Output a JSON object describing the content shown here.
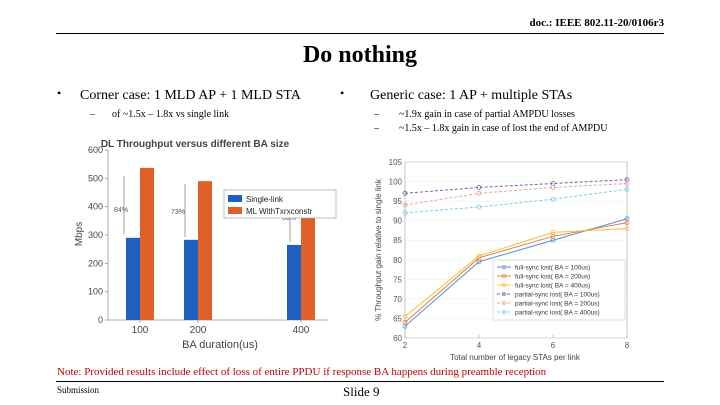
{
  "doc_id": "doc.: IEEE 802.11-20/0106r3",
  "title": "Do nothing",
  "left": {
    "bullet": "Corner case: 1 MLD AP + 1 MLD STA",
    "sub": "of ~1.5x – 1.8x vs single link"
  },
  "right": {
    "bullet": "Generic case: 1 AP + multiple STAs",
    "subs": [
      "~1.9x gain in case of partial AMPDU losses",
      "~1.5x – 1.8x gain in case of lost the end of AMPDU"
    ]
  },
  "bar_chart": {
    "title": "DL Throughput versus different BA size",
    "xlabel": "BA duration(us)",
    "ylabel": "Mbps",
    "y_ticks": [
      "0",
      "100",
      "200",
      "300",
      "400",
      "500",
      "600"
    ],
    "legend": [
      "Single-link",
      "ML WithTxrxconstr"
    ],
    "annotations": [
      "84%",
      "73%",
      "56%"
    ]
  },
  "line_chart": {
    "xlabel": "Total number of legacy STAs per link",
    "ylabel": "% Throughput gain relative to single link",
    "y_ticks": [
      "60",
      "65",
      "70",
      "75",
      "80",
      "85",
      "90",
      "95",
      "100",
      "105"
    ],
    "x_ticks": [
      "2",
      "4",
      "6",
      "8"
    ],
    "legend": [
      "full-sync lost( BA = 100us)",
      "full-sync lost( BA = 200us)",
      "full-sync lost( BA = 400us)",
      "partial-sync lost( BA = 100us)",
      "partial-sync lost( BA = 200us)",
      "partial-sync lost( BA = 400us)"
    ]
  },
  "chart_data": [
    {
      "type": "bar",
      "title": "DL Throughput versus different BA size",
      "xlabel": "BA duration(us)",
      "ylabel": "Mbps",
      "categories": [
        "100",
        "200",
        "400"
      ],
      "ylim": [
        0,
        600
      ],
      "series": [
        {
          "name": "Single-link",
          "values": [
            290,
            283,
            265
          ],
          "color": "#1f5fbf"
        },
        {
          "name": "ML WithTxrxconstr",
          "values": [
            537,
            490,
            413
          ],
          "color": "#e0602a"
        }
      ],
      "legend_position": "top-right"
    },
    {
      "type": "line",
      "xlabel": "Total number of legacy STAs per link",
      "ylabel": "% Throughput gain relative to single link",
      "x": [
        2,
        4,
        6,
        8
      ],
      "ylim": [
        60,
        105
      ],
      "series": [
        {
          "name": "full-sync lost( BA = 100us)",
          "values": [
            63,
            79.5,
            85,
            90.5
          ],
          "color": "#5b8fd6",
          "dash": false
        },
        {
          "name": "full-sync lost( BA = 200us)",
          "values": [
            64,
            80.5,
            86,
            89.5
          ],
          "color": "#e08040",
          "dash": false
        },
        {
          "name": "full-sync lost( BA = 400us)",
          "values": [
            65.5,
            81,
            87,
            88
          ],
          "color": "#f0c040",
          "dash": false
        },
        {
          "name": "partial-sync lost( BA = 100us)",
          "values": [
            97,
            98.5,
            99.5,
            100.5
          ],
          "color": "#6a6aa8",
          "dash": true
        },
        {
          "name": "partial-sync lost( BA = 200us)",
          "values": [
            94,
            97,
            98.5,
            99.5
          ],
          "color": "#e8a0a0",
          "dash": true
        },
        {
          "name": "partial-sync lost( BA = 400us)",
          "values": [
            92,
            93.5,
            95.5,
            98
          ],
          "color": "#80c8e8",
          "dash": true
        }
      ],
      "legend_position": "bottom-right"
    }
  ],
  "note": "Note: Provided results include effect of loss of entire PPDU if response BA happens during preamble reception",
  "submission": "Submission",
  "slide": "Slide 9"
}
